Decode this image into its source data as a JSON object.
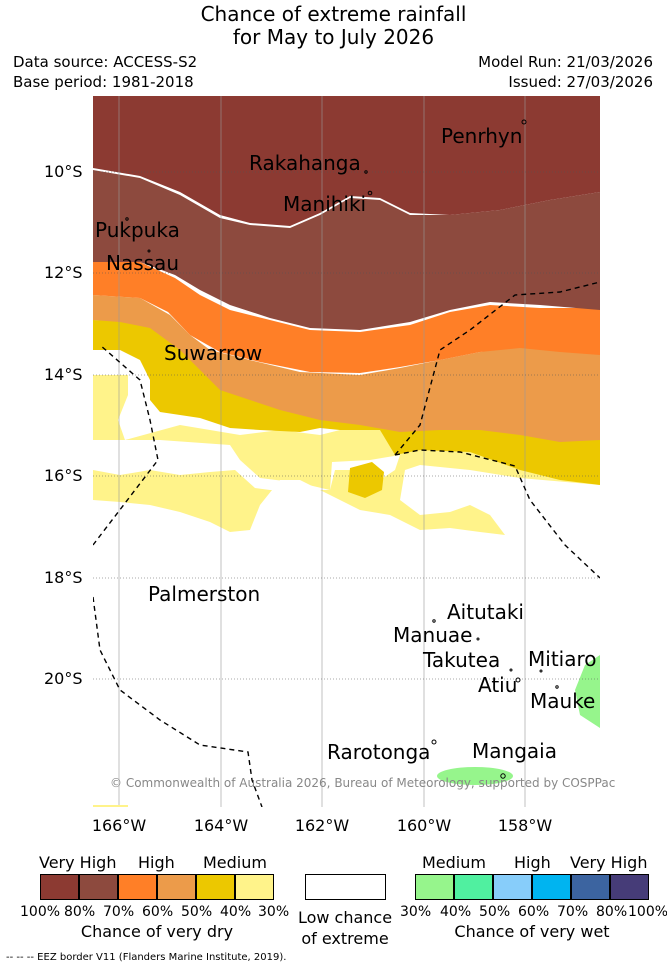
{
  "title": {
    "line1": "Chance of extreme rainfall",
    "line2": "for May to July 2026"
  },
  "meta": {
    "data_source": "Data source: ACCESS-S2",
    "base_period": "Base period: 1981-2018",
    "model_run": "Model Run: 21/03/2026",
    "issued": "Issued: 27/03/2026"
  },
  "map": {
    "lat_labels": [
      "10°S",
      "12°S",
      "14°S",
      "16°S",
      "18°S",
      "20°S"
    ],
    "lon_labels": [
      "166°W",
      "164°W",
      "162°W",
      "160°W",
      "158°W"
    ],
    "places": [
      "Penrhyn",
      "Rakahanga",
      "Manihiki",
      "Pukpuka",
      "Nassau",
      "Suwarrow",
      "Palmerston",
      "Aitutaki",
      "Manuae",
      "Takutea",
      "Mitiaro",
      "Atiu",
      "Mauke",
      "Rarotonga",
      "Mangaia"
    ],
    "copyright": "© Commonwealth of Australia 2026, Bureau of Meteorology, supported by COSPPac"
  },
  "legend": {
    "dry": {
      "categories": [
        "Very High",
        "High",
        "Medium"
      ],
      "ticks": [
        "100%",
        "80%",
        "70%",
        "60%",
        "50%",
        "40%",
        "30%"
      ],
      "colors": [
        "#8c3a32",
        "#8d4a3e",
        "#ff7f27",
        "#ec9b4a",
        "#ecc800",
        "#fff38a"
      ],
      "caption": "Chance of very dry"
    },
    "neutral": {
      "line1": "Low chance",
      "line2": "of extreme"
    },
    "wet": {
      "categories": [
        "Medium",
        "High",
        "Very High"
      ],
      "ticks": [
        "30%",
        "40%",
        "50%",
        "60%",
        "70%",
        "80%",
        "100%"
      ],
      "colors": [
        "#96f58c",
        "#50f0a0",
        "#87cdfa",
        "#00b4f0",
        "#3c64a0",
        "#463c78"
      ],
      "caption": "Chance of very wet"
    },
    "eez_note": "--  --  -- EEZ border V11 (Flanders Marine Institute, 2019)."
  }
}
